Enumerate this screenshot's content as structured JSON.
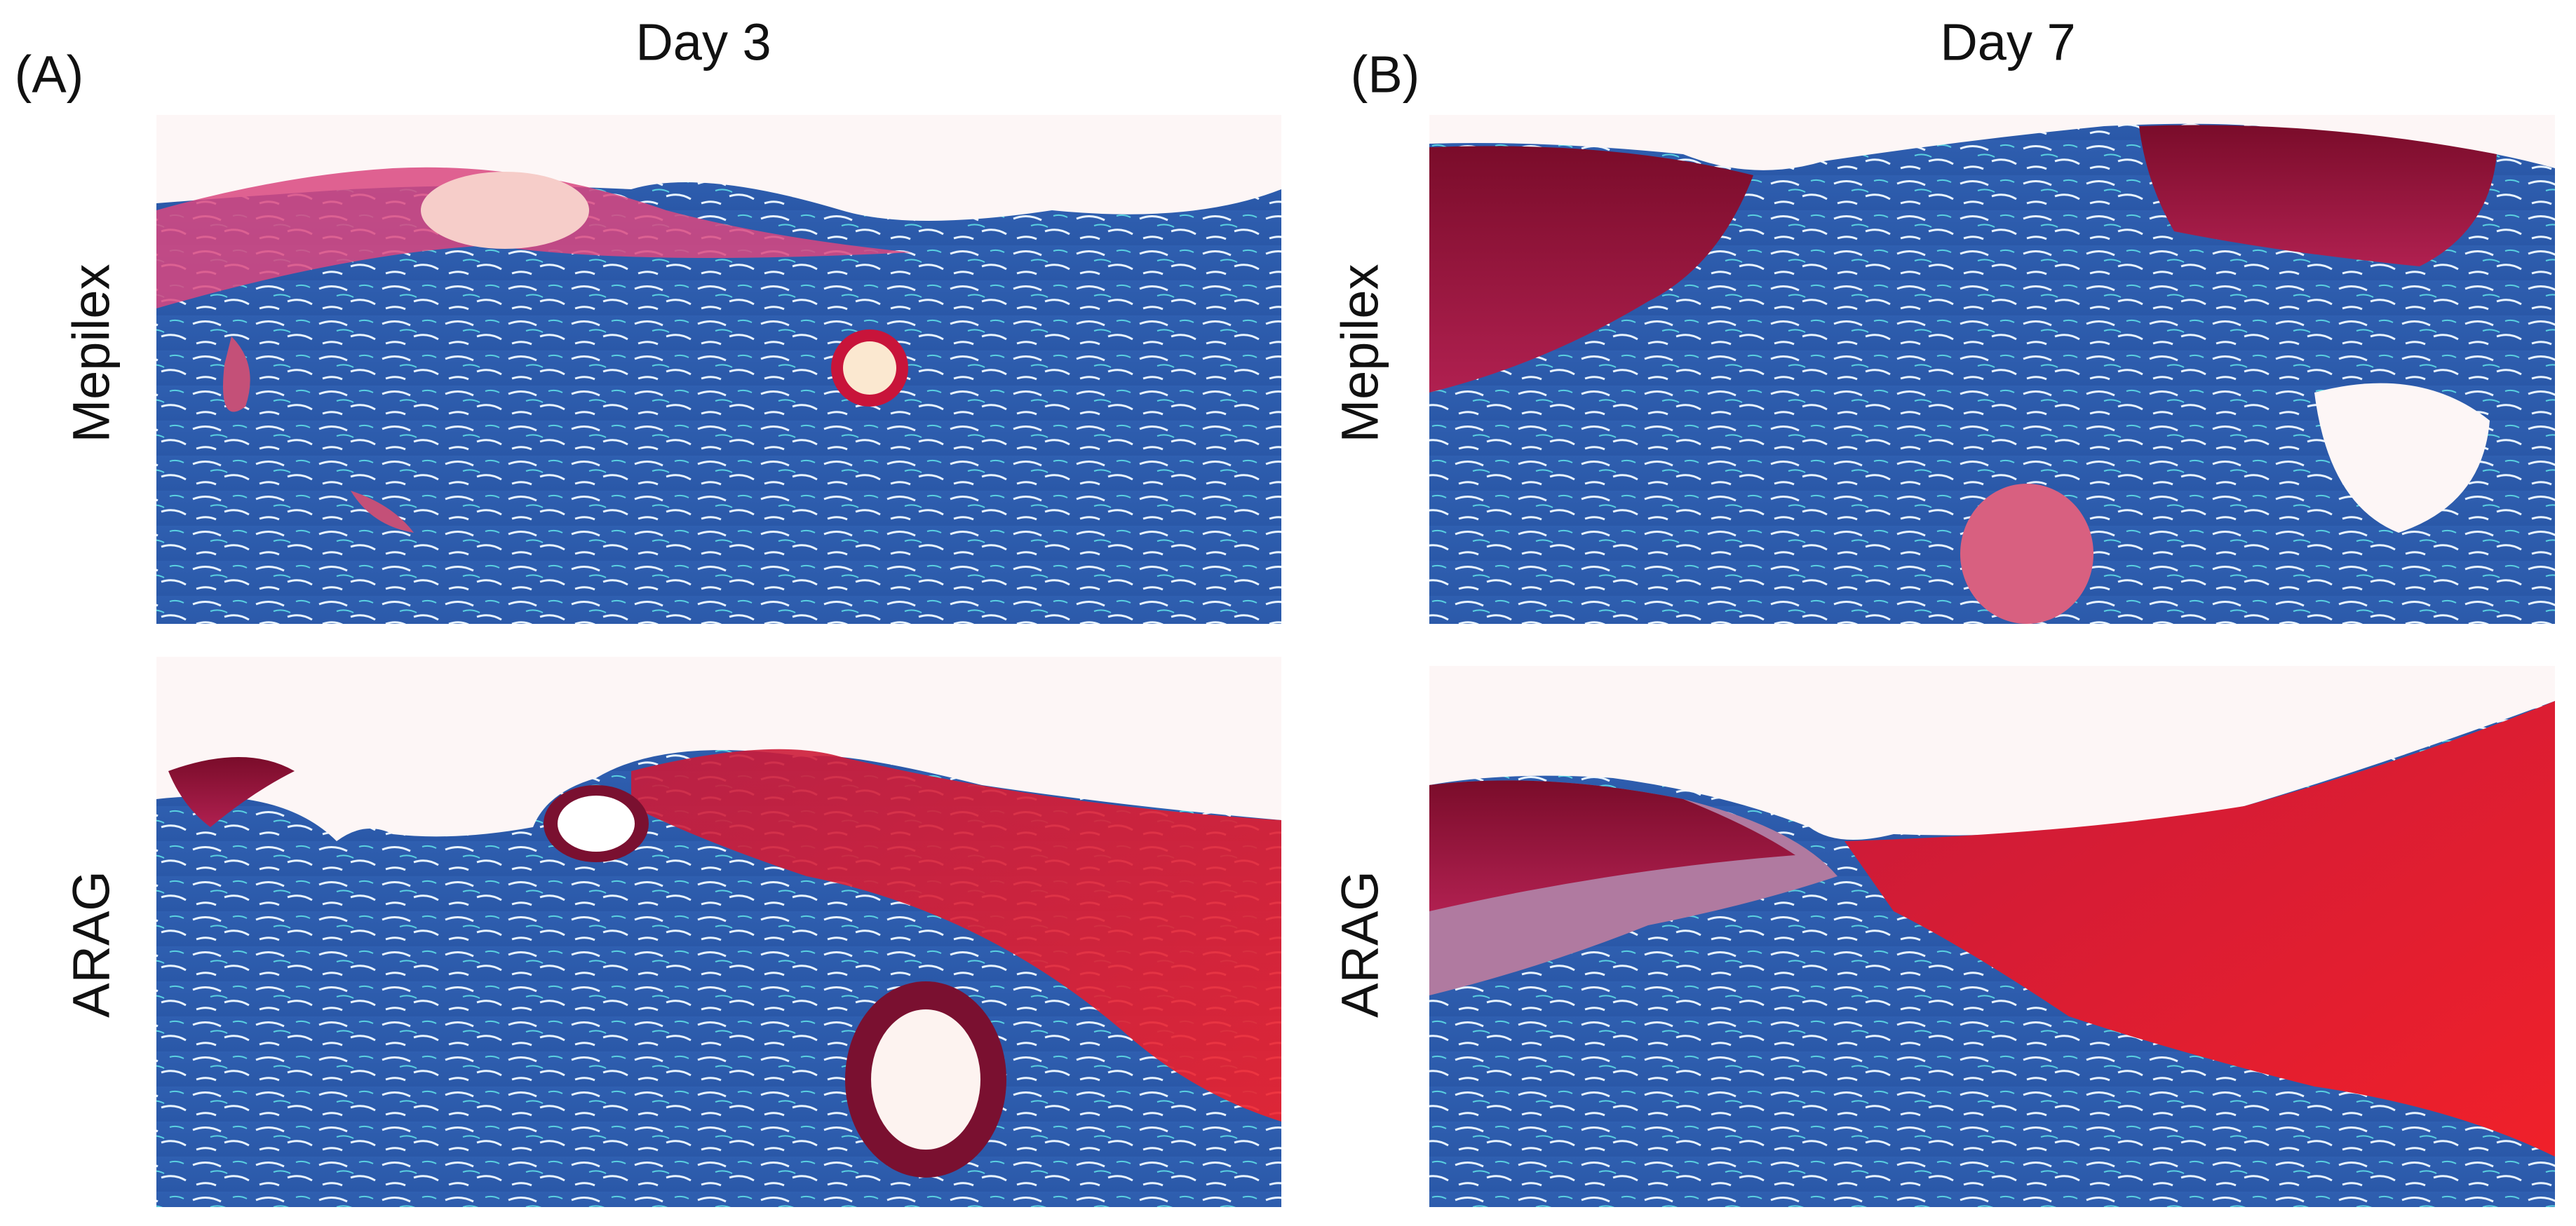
{
  "panels": [
    {
      "label": "(A)",
      "column_title": "Day 3",
      "rows": [
        {
          "label": "Mepilex"
        },
        {
          "label": "ARAG"
        }
      ]
    },
    {
      "label": "(B)",
      "column_title": "Day 7",
      "rows": [
        {
          "label": "Mepilex"
        },
        {
          "label": "ARAG"
        }
      ]
    }
  ]
}
